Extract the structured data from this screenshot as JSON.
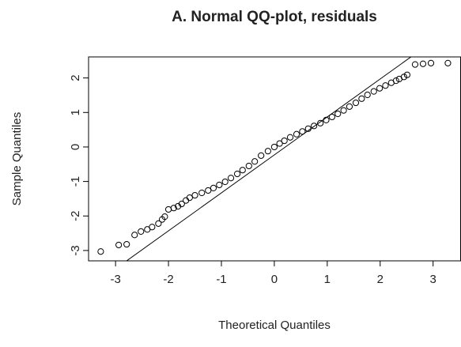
{
  "chart_data": {
    "type": "scatter",
    "title": "A. Normal QQ-plot, residuals",
    "xlabel": "Theoretical Quantiles",
    "ylabel": "Sample Quantiles",
    "x": [
      -3.28,
      -2.94,
      -2.79,
      -2.64,
      -2.52,
      -2.4,
      -2.31,
      -2.19,
      -2.12,
      -2.07,
      -2.0,
      -1.9,
      -1.82,
      -1.75,
      -1.67,
      -1.6,
      -1.5,
      -1.37,
      -1.25,
      -1.15,
      -1.04,
      -0.93,
      -0.82,
      -0.7,
      -0.6,
      -0.48,
      -0.37,
      -0.25,
      -0.12,
      0.0,
      0.1,
      0.19,
      0.3,
      0.42,
      0.53,
      0.64,
      0.75,
      0.87,
      0.98,
      1.09,
      1.2,
      1.31,
      1.42,
      1.54,
      1.65,
      1.76,
      1.88,
      1.99,
      2.1,
      2.21,
      2.3,
      2.36,
      2.45,
      2.51,
      2.66,
      2.81,
      2.96,
      3.28
    ],
    "series": [
      {
        "name": "residuals",
        "color": "#000000",
        "values": [
          -3.03,
          -2.84,
          -2.82,
          -2.55,
          -2.45,
          -2.39,
          -2.32,
          -2.22,
          -2.1,
          -2.02,
          -1.81,
          -1.77,
          -1.72,
          -1.65,
          -1.55,
          -1.47,
          -1.4,
          -1.33,
          -1.26,
          -1.19,
          -1.1,
          -1.01,
          -0.9,
          -0.78,
          -0.67,
          -0.55,
          -0.42,
          -0.25,
          -0.12,
          0.0,
          0.1,
          0.18,
          0.28,
          0.37,
          0.45,
          0.53,
          0.61,
          0.69,
          0.78,
          0.87,
          0.96,
          1.06,
          1.17,
          1.28,
          1.4,
          1.51,
          1.61,
          1.7,
          1.78,
          1.86,
          1.92,
          1.97,
          2.03,
          2.09,
          2.39,
          2.41,
          2.43,
          2.43
        ]
      }
    ],
    "reference_line": {
      "slope": 1.1,
      "intercept": -0.23
    },
    "xlim": [
      -3.51,
      3.52
    ],
    "ylim": [
      -3.3,
      2.61
    ],
    "xticks": [
      -3,
      -2,
      -1,
      0,
      1,
      2,
      3
    ],
    "yticks": [
      -3,
      -2,
      -1,
      0,
      1,
      2
    ]
  }
}
